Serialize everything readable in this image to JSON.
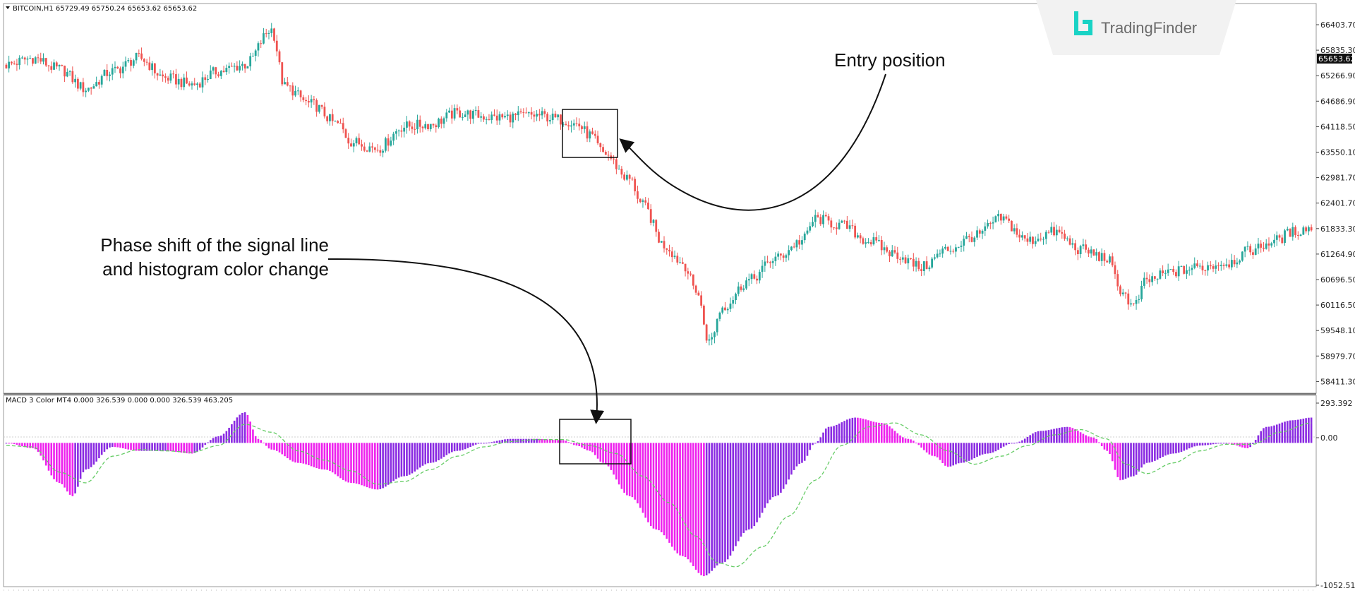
{
  "chart_data": [
    {
      "type": "candlestick",
      "header": "BITCOIN,H1  65729.49 65750.24 65653.62 65653.62",
      "y_tick_labels": [
        "66403.70",
        "65835.30",
        "65266.90",
        "64686.90",
        "64118.50",
        "63550.10",
        "62981.70",
        "62401.70",
        "61833.30",
        "61264.90",
        "60696.50",
        "60116.50",
        "59548.10",
        "58979.70",
        "58411.30"
      ],
      "ylim": [
        58150,
        66650
      ],
      "current_price": "65653.62",
      "colors": {
        "up": "#26a69a",
        "down": "#ef5350",
        "price_label_bg": "#111111"
      },
      "close_path": [
        [
          0,
          65500
        ],
        [
          10,
          65650
        ],
        [
          20,
          65400
        ],
        [
          30,
          64950
        ],
        [
          40,
          65350
        ],
        [
          50,
          65650
        ],
        [
          60,
          65200
        ],
        [
          70,
          65050
        ],
        [
          80,
          65350
        ],
        [
          90,
          65500
        ],
        [
          100,
          66300
        ],
        [
          105,
          65000
        ],
        [
          115,
          64600
        ],
        [
          125,
          64150
        ],
        [
          130,
          63750
        ],
        [
          140,
          63600
        ],
        [
          150,
          64100
        ],
        [
          160,
          64150
        ],
        [
          170,
          64400
        ],
        [
          185,
          64300
        ],
        [
          200,
          64350
        ],
        [
          210,
          64250
        ],
        [
          215,
          64150
        ],
        [
          220,
          63900
        ],
        [
          225,
          63500
        ],
        [
          235,
          62900
        ],
        [
          240,
          62300
        ],
        [
          248,
          61400
        ],
        [
          255,
          61000
        ],
        [
          260,
          60400
        ],
        [
          265,
          59200
        ],
        [
          270,
          60000
        ],
        [
          280,
          60600
        ],
        [
          290,
          61100
        ],
        [
          300,
          61500
        ],
        [
          305,
          62000
        ],
        [
          315,
          61850
        ],
        [
          325,
          61500
        ],
        [
          335,
          61200
        ],
        [
          345,
          60900
        ],
        [
          355,
          61300
        ],
        [
          365,
          61600
        ],
        [
          375,
          62000
        ],
        [
          385,
          61500
        ],
        [
          395,
          61700
        ],
        [
          405,
          61300
        ],
        [
          415,
          61100
        ],
        [
          420,
          60400
        ],
        [
          425,
          60000
        ],
        [
          430,
          60600
        ],
        [
          440,
          60800
        ],
        [
          450,
          60900
        ],
        [
          460,
          61000
        ],
        [
          470,
          61300
        ],
        [
          478,
          61500
        ],
        [
          485,
          61700
        ],
        [
          492,
          61800
        ]
      ]
    },
    {
      "type": "bar",
      "title": "MACD 3 Color MT4 0.000 326.539 0.000 0.000 326.539 463.205",
      "y_tick_labels": [
        "293.392",
        "0.00",
        "-1052.516"
      ],
      "ylim": [
        -1052.516,
        293.392
      ],
      "colors": {
        "rising": "#ee22ee",
        "falling": "#8a2be2",
        "signal": "#66cc66"
      },
      "macd_path": [
        [
          0,
          0
        ],
        [
          10,
          -40
        ],
        [
          20,
          -300
        ],
        [
          25,
          -400
        ],
        [
          30,
          -200
        ],
        [
          40,
          -30
        ],
        [
          50,
          -60
        ],
        [
          60,
          -60
        ],
        [
          70,
          -80
        ],
        [
          80,
          50
        ],
        [
          90,
          230
        ],
        [
          95,
          30
        ],
        [
          100,
          -50
        ],
        [
          110,
          -150
        ],
        [
          120,
          -200
        ],
        [
          130,
          -300
        ],
        [
          140,
          -350
        ],
        [
          150,
          -250
        ],
        [
          160,
          -150
        ],
        [
          170,
          -60
        ],
        [
          180,
          0
        ],
        [
          190,
          30
        ],
        [
          200,
          30
        ],
        [
          210,
          20
        ],
        [
          215,
          -20
        ],
        [
          220,
          -60
        ],
        [
          225,
          -150
        ],
        [
          235,
          -400
        ],
        [
          245,
          -650
        ],
        [
          255,
          -850
        ],
        [
          263,
          -1000
        ],
        [
          270,
          -900
        ],
        [
          280,
          -650
        ],
        [
          290,
          -400
        ],
        [
          300,
          -150
        ],
        [
          305,
          0
        ],
        [
          310,
          120
        ],
        [
          320,
          190
        ],
        [
          330,
          150
        ],
        [
          340,
          30
        ],
        [
          350,
          -100
        ],
        [
          355,
          -180
        ],
        [
          360,
          -150
        ],
        [
          370,
          -80
        ],
        [
          380,
          0
        ],
        [
          390,
          90
        ],
        [
          400,
          120
        ],
        [
          410,
          40
        ],
        [
          415,
          -60
        ],
        [
          420,
          -280
        ],
        [
          425,
          -250
        ],
        [
          430,
          -150
        ],
        [
          440,
          -80
        ],
        [
          450,
          -20
        ],
        [
          460,
          0
        ],
        [
          468,
          -40
        ],
        [
          475,
          120
        ],
        [
          485,
          170
        ],
        [
          492,
          190
        ]
      ],
      "signal_path": [
        [
          0,
          -20
        ],
        [
          10,
          -30
        ],
        [
          20,
          -220
        ],
        [
          30,
          -300
        ],
        [
          40,
          -100
        ],
        [
          50,
          -50
        ],
        [
          60,
          -60
        ],
        [
          70,
          -70
        ],
        [
          80,
          -20
        ],
        [
          90,
          140
        ],
        [
          100,
          80
        ],
        [
          110,
          -60
        ],
        [
          120,
          -130
        ],
        [
          130,
          -210
        ],
        [
          140,
          -310
        ],
        [
          150,
          -290
        ],
        [
          160,
          -200
        ],
        [
          170,
          -100
        ],
        [
          180,
          -30
        ],
        [
          190,
          10
        ],
        [
          200,
          25
        ],
        [
          210,
          25
        ],
        [
          220,
          -20
        ],
        [
          230,
          -80
        ],
        [
          240,
          -250
        ],
        [
          250,
          -450
        ],
        [
          260,
          -700
        ],
        [
          268,
          -900
        ],
        [
          275,
          -930
        ],
        [
          285,
          -780
        ],
        [
          295,
          -550
        ],
        [
          305,
          -280
        ],
        [
          315,
          -20
        ],
        [
          325,
          120
        ],
        [
          335,
          150
        ],
        [
          345,
          60
        ],
        [
          355,
          -60
        ],
        [
          365,
          -160
        ],
        [
          375,
          -100
        ],
        [
          385,
          -20
        ],
        [
          395,
          60
        ],
        [
          405,
          100
        ],
        [
          415,
          30
        ],
        [
          422,
          -160
        ],
        [
          430,
          -230
        ],
        [
          440,
          -150
        ],
        [
          450,
          -60
        ],
        [
          460,
          -10
        ],
        [
          470,
          -10
        ],
        [
          480,
          80
        ],
        [
          492,
          150
        ]
      ]
    }
  ],
  "annotations": {
    "entry": "Entry position",
    "phase_line1": "Phase shift of the signal line",
    "phase_line2": "and histogram color change"
  },
  "brand": {
    "name": "TradingFinder",
    "accent": "#19d3c5"
  }
}
